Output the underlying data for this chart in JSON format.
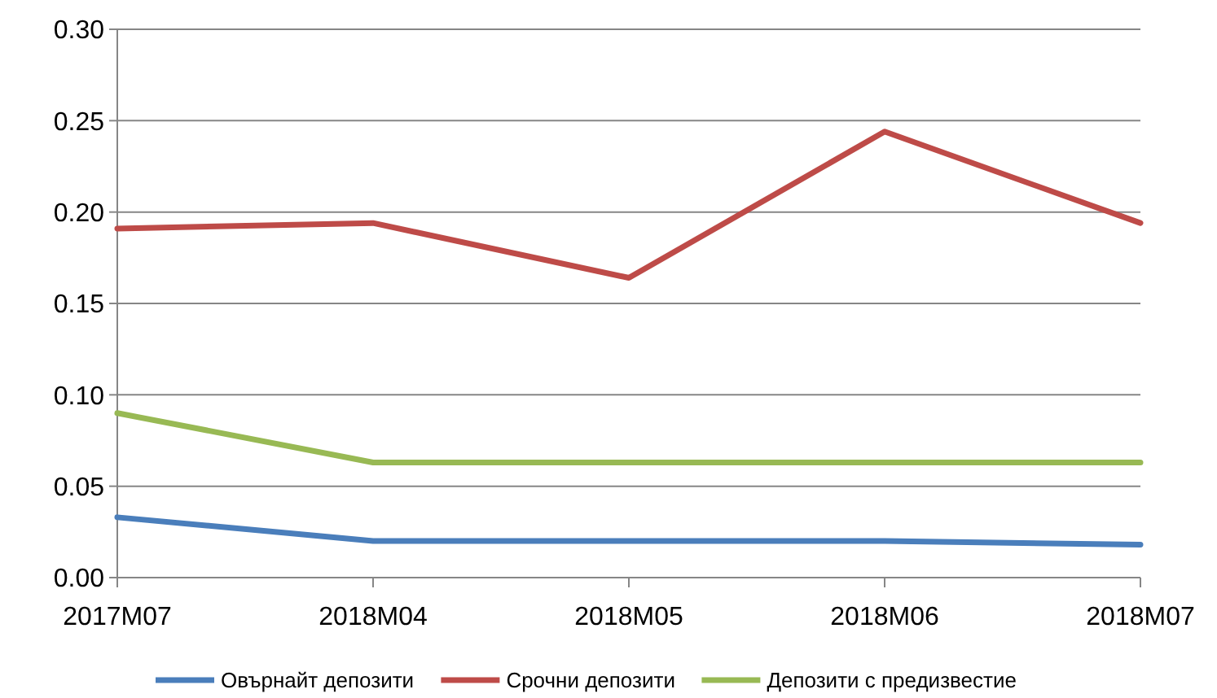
{
  "chart_data": {
    "type": "line",
    "categories": [
      "2017M07",
      "2018M04",
      "2018M05",
      "2018M06",
      "2018M07"
    ],
    "series": [
      {
        "name": "Овърнайт депозити",
        "color": "#4a7ebb",
        "values": [
          0.033,
          0.02,
          0.02,
          0.02,
          0.018
        ]
      },
      {
        "name": "Срочни депозити",
        "color": "#be4b48",
        "values": [
          0.191,
          0.194,
          0.164,
          0.244,
          0.194
        ]
      },
      {
        "name": "Депозити с предизвестие",
        "color": "#98b954",
        "values": [
          0.09,
          0.063,
          0.063,
          0.063,
          0.063
        ]
      }
    ],
    "ylim": [
      0,
      0.3
    ],
    "yticks": [
      {
        "value": 0,
        "label": "0.00"
      },
      {
        "value": 0.05,
        "label": "0.05"
      },
      {
        "value": 0.1,
        "label": "0.10"
      },
      {
        "value": 0.15,
        "label": "0.15"
      },
      {
        "value": 0.2,
        "label": "0.20"
      },
      {
        "value": 0.25,
        "label": "0.25"
      },
      {
        "value": 0.3,
        "label": "0.30"
      }
    ],
    "grid": "y",
    "legend": "bottom",
    "marker": "none",
    "line_style": "solid"
  }
}
